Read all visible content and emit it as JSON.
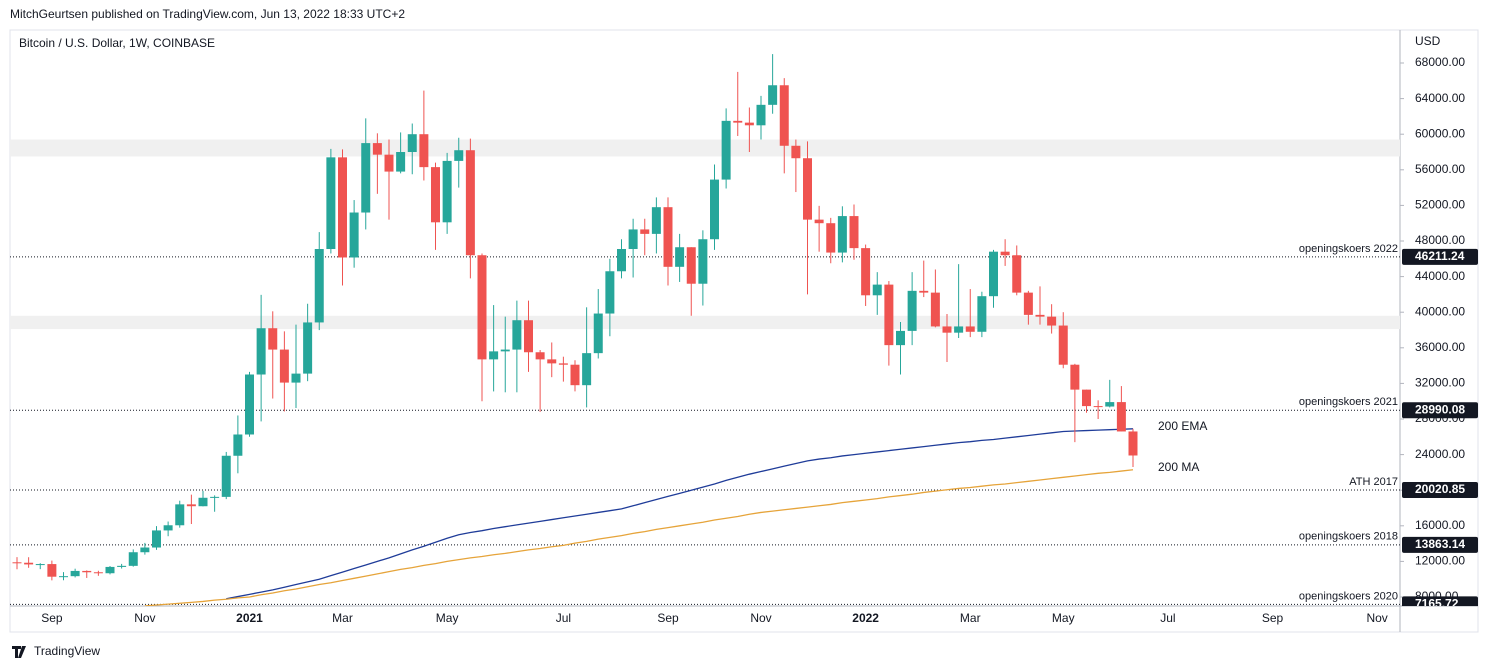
{
  "header": {
    "publisher": "MitchGeurtsen published on TradingView.com, Jun 13, 2022 18:33 UTC+2"
  },
  "footer": {
    "brand": "TradingView"
  },
  "chart_data": {
    "type": "candlestick",
    "title": "Bitcoin / U.S. Dollar, 1W, COINBASE",
    "y_label": "USD",
    "up_color": "#26a69a",
    "down_color": "#ef5350",
    "grid": false,
    "categories": [
      null,
      null,
      null,
      "Sep",
      null,
      null,
      null,
      null,
      null,
      null,
      null,
      "Nov",
      null,
      null,
      null,
      null,
      null,
      null,
      null,
      null,
      "2021",
      null,
      null,
      null,
      null,
      null,
      null,
      null,
      "Mar",
      null,
      null,
      null,
      null,
      null,
      null,
      null,
      null,
      "May",
      null,
      null,
      null,
      null,
      null,
      null,
      null,
      null,
      null,
      "Jul",
      null,
      null,
      null,
      null,
      null,
      null,
      null,
      null,
      "Sep",
      null,
      null,
      null,
      null,
      null,
      null,
      null,
      "Nov",
      null,
      null,
      null,
      null,
      null,
      null,
      null,
      null,
      "2022",
      null,
      null,
      null,
      null,
      null,
      null,
      null,
      null,
      "Mar",
      null,
      null,
      null,
      null,
      null,
      null,
      null,
      "May",
      null,
      null,
      null,
      null,
      null,
      null,
      null,
      null,
      "Jul",
      null,
      null,
      null,
      null,
      null,
      null,
      null,
      null,
      "Sep",
      null,
      null,
      null,
      null,
      null,
      null,
      null,
      null,
      "Nov",
      null
    ],
    "open": [
      11900,
      11850,
      11660,
      11700,
      10280,
      10340,
      10930,
      10780,
      10670,
      11380,
      11500,
      13030,
      13560,
      15480,
      16060,
      18410,
      18200,
      19150,
      19250,
      23870,
      26260,
      33000,
      38200,
      35800,
      32090,
      33100,
      38850,
      47100,
      57400,
      46150,
      51200,
      59000,
      57700,
      55800,
      58000,
      60000,
      56300,
      50100,
      57000,
      58200,
      46400,
      34700,
      35600,
      35800,
      39100,
      35500,
      34700,
      34250,
      34100,
      31800,
      35400,
      39850,
      44600,
      47100,
      49300,
      48800,
      51800,
      45100,
      47300,
      43200,
      48200,
      54900,
      61500,
      61300,
      61000,
      63300,
      65500,
      58700,
      57300,
      50400,
      50000,
      46700,
      50800,
      47200,
      41900,
      43100,
      36300,
      37900,
      42400,
      42200,
      38400,
      37700,
      38400,
      37800,
      41800,
      46800,
      46400,
      42200,
      39700,
      39500,
      38500,
      34100,
      31300,
      29450,
      29400,
      29900,
      26600,
      null,
      null,
      null,
      null,
      null,
      null,
      null,
      null,
      null,
      null,
      null,
      null,
      null,
      null,
      null,
      null,
      null,
      null,
      null,
      null,
      null,
      null
    ],
    "high": [
      12480,
      12470,
      11800,
      12090,
      10800,
      11180,
      10990,
      10950,
      11490,
      11720,
      13350,
      14080,
      15970,
      16480,
      18820,
      19500,
      19920,
      19420,
      24300,
      28400,
      33300,
      41950,
      40100,
      37850,
      38600,
      40950,
      49000,
      58350,
      58300,
      52600,
      61780,
      60100,
      59400,
      60200,
      61200,
      64900,
      56800,
      57900,
      59600,
      59500,
      46600,
      40800,
      39500,
      41300,
      41300,
      35750,
      36600,
      35000,
      34600,
      40550,
      42600,
      46000,
      48200,
      50500,
      50500,
      52900,
      52900,
      48800,
      47300,
      49200,
      56600,
      62900,
      67000,
      63000,
      64300,
      69000,
      66300,
      59400,
      59200,
      51950,
      50600,
      51900,
      52100,
      47600,
      44500,
      43500,
      38900,
      44500,
      45800,
      44800,
      39800,
      45400,
      42600,
      42300,
      47000,
      48200,
      47500,
      42400,
      42900,
      40900,
      40000,
      34200,
      31300,
      30100,
      32400,
      31700,
      26900,
      null,
      null,
      null,
      null,
      null,
      null,
      null,
      null,
      null,
      null,
      null,
      null,
      null,
      null,
      null,
      null,
      null,
      null,
      null,
      null,
      null,
      null
    ],
    "low": [
      11120,
      11280,
      11130,
      9870,
      9880,
      10200,
      10140,
      10380,
      10540,
      11200,
      11410,
      12760,
      13290,
      14830,
      15790,
      16200,
      18180,
      17580,
      19000,
      21900,
      26000,
      27730,
      30300,
      28850,
      29240,
      32250,
      37990,
      46600,
      43000,
      45000,
      49300,
      53300,
      50400,
      55600,
      55500,
      54800,
      47000,
      48800,
      54000,
      43800,
      30000,
      31100,
      31000,
      31000,
      33300,
      28800,
      32700,
      32200,
      31100,
      29300,
      34800,
      37300,
      43800,
      43900,
      46400,
      46600,
      43000,
      43400,
      39600,
      40750,
      47000,
      53900,
      59800,
      58000,
      59400,
      62300,
      55600,
      53500,
      42000,
      46800,
      45500,
      45600,
      45900,
      40700,
      39700,
      34000,
      33000,
      36300,
      41700,
      38300,
      34400,
      37100,
      37200,
      37200,
      40500,
      45200,
      41900,
      38600,
      38600,
      37600,
      33700,
      25400,
      28700,
      28000,
      29300,
      26600,
      22600,
      null,
      null,
      null,
      null,
      null,
      null,
      null,
      null,
      null,
      null,
      null,
      null,
      null,
      null,
      null,
      null,
      null,
      null,
      null,
      null,
      null,
      null
    ],
    "close": [
      11850,
      11660,
      11700,
      10280,
      10340,
      10930,
      10780,
      10670,
      11380,
      11500,
      13030,
      13560,
      15480,
      16060,
      18410,
      18200,
      19150,
      19250,
      23870,
      26260,
      33000,
      38200,
      35800,
      32090,
      33100,
      38850,
      47100,
      57400,
      46150,
      51200,
      59000,
      57700,
      55800,
      58000,
      60000,
      56300,
      50100,
      57000,
      58200,
      46400,
      34700,
      35600,
      35800,
      39100,
      35500,
      34700,
      34250,
      34100,
      31800,
      35400,
      39850,
      44600,
      47100,
      49300,
      48800,
      51800,
      45100,
      47300,
      43200,
      48200,
      54900,
      61500,
      61300,
      61000,
      63300,
      65500,
      58700,
      57300,
      50400,
      50000,
      46700,
      50800,
      47200,
      41900,
      43100,
      36300,
      37900,
      42400,
      42200,
      38400,
      37700,
      38400,
      37800,
      41800,
      46800,
      46400,
      42200,
      39700,
      39500,
      38500,
      34100,
      31300,
      29450,
      29400,
      29900,
      26600,
      23900,
      null,
      null,
      null,
      null,
      null,
      null,
      null,
      null,
      null,
      null,
      null,
      null,
      null,
      null,
      null,
      null,
      null,
      null,
      null,
      null,
      null,
      null
    ],
    "series": [
      {
        "name": "200 EMA",
        "color": "#1f3c99",
        "values": [
          null,
          null,
          null,
          null,
          null,
          null,
          null,
          null,
          null,
          null,
          null,
          null,
          null,
          null,
          null,
          null,
          null,
          null,
          7800,
          8050,
          8300,
          8550,
          8800,
          9100,
          9400,
          9700,
          10000,
          10400,
          10800,
          11200,
          11600,
          12000,
          12400,
          12850,
          13300,
          13700,
          14150,
          14600,
          15000,
          15250,
          15450,
          15700,
          15900,
          16100,
          16300,
          16500,
          16700,
          16900,
          17100,
          17300,
          17500,
          17700,
          17900,
          18250,
          18600,
          18950,
          19300,
          19650,
          20000,
          20350,
          20700,
          21100,
          21450,
          21800,
          22100,
          22400,
          22700,
          23000,
          23300,
          23500,
          23650,
          23850,
          24000,
          24150,
          24300,
          24450,
          24600,
          24750,
          24900,
          25050,
          25200,
          25350,
          25450,
          25600,
          25700,
          25850,
          26000,
          26150,
          26300,
          26450,
          26600,
          26650,
          26700,
          26750,
          26800,
          26850,
          26900,
          null,
          null,
          null,
          null,
          null,
          null,
          null,
          null,
          null,
          null,
          null,
          null,
          null,
          null,
          null,
          null,
          null,
          null,
          null,
          null,
          null,
          null
        ]
      },
      {
        "name": "200 MA",
        "color": "#e6a43a",
        "values": [
          null,
          null,
          null,
          null,
          null,
          null,
          null,
          null,
          null,
          null,
          null,
          7000,
          7100,
          7200,
          7300,
          7400,
          7500,
          7650,
          7750,
          7900,
          8000,
          8250,
          8450,
          8700,
          8900,
          9150,
          9400,
          9600,
          9850,
          10100,
          10350,
          10600,
          10850,
          11100,
          11300,
          11550,
          11750,
          12000,
          12200,
          12400,
          12550,
          12750,
          12900,
          13100,
          13300,
          13450,
          13650,
          13800,
          14050,
          14250,
          14500,
          14700,
          14900,
          15150,
          15350,
          15600,
          15800,
          16000,
          16200,
          16400,
          16650,
          16850,
          17050,
          17300,
          17500,
          17650,
          17800,
          17950,
          18100,
          18250,
          18400,
          18600,
          18750,
          18900,
          19050,
          19250,
          19400,
          19550,
          19750,
          19900,
          20050,
          20200,
          20300,
          20450,
          20600,
          20700,
          20850,
          21000,
          21150,
          21300,
          21450,
          21600,
          21750,
          21900,
          22000,
          22150,
          22300,
          null,
          null,
          null,
          null,
          null,
          null,
          null,
          null,
          null,
          null,
          null,
          null,
          null,
          null,
          null,
          null,
          null,
          null,
          null,
          null,
          null,
          null
        ]
      }
    ],
    "levels": [
      {
        "name": "openingskoers 2022",
        "value": 46211.24
      },
      {
        "name": "openingskoers 2021",
        "value": 28990.08
      },
      {
        "name": "ATH 2017",
        "value": 20020.85
      },
      {
        "name": "openingskoers 2018",
        "value": 13863.14
      },
      {
        "name": "openingskoers 2020",
        "value": 7165.72
      }
    ],
    "zones": [
      {
        "from": 57500,
        "to": 59400
      },
      {
        "from": 38100,
        "to": 39600
      }
    ],
    "ylim": [
      6989,
      71708
    ],
    "yticks": [
      {
        "value": 8000,
        "label": "8000.00"
      },
      {
        "value": 12000,
        "label": "12000.00"
      },
      {
        "value": 16000,
        "label": "16000.00"
      },
      {
        "value": 20000,
        "label": "20000.00"
      },
      {
        "value": 24000,
        "label": "24000.00"
      },
      {
        "value": 28000,
        "label": "28000.00"
      },
      {
        "value": 32000,
        "label": "32000.00"
      },
      {
        "value": 36000,
        "label": "36000.00"
      },
      {
        "value": 40000,
        "label": "40000.00"
      },
      {
        "value": 44000,
        "label": "44000.00"
      },
      {
        "value": 48000,
        "label": "48000.00"
      },
      {
        "value": 52000,
        "label": "52000.00"
      },
      {
        "value": 56000,
        "label": "56000.00"
      },
      {
        "value": 60000,
        "label": "60000.00"
      },
      {
        "value": 64000,
        "label": "64000.00"
      },
      {
        "value": 68000,
        "label": "68000.00"
      }
    ]
  }
}
